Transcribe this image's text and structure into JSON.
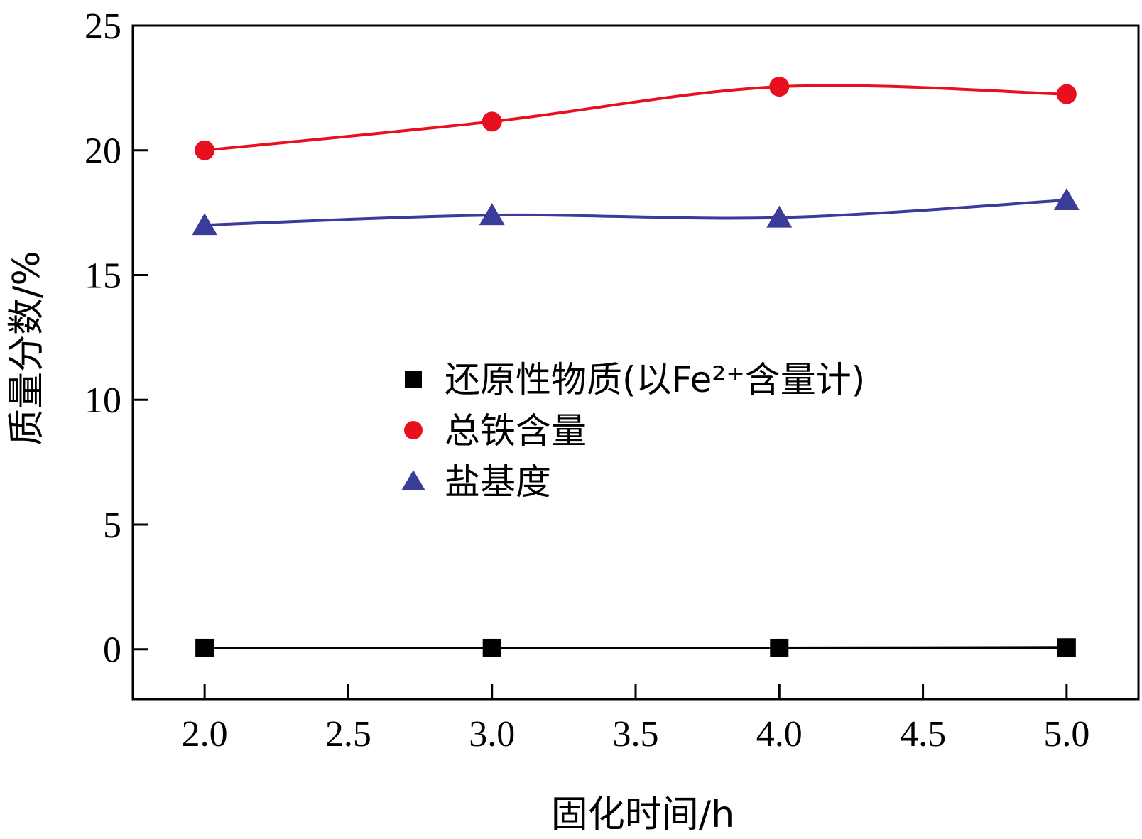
{
  "chart_data": {
    "type": "line",
    "title": "",
    "xlabel": "固化时间/h",
    "ylabel": "质量分数/%",
    "xlim": [
      1.75,
      5.25
    ],
    "ylim": [
      -2,
      25
    ],
    "x_ticks": [
      2.0,
      2.5,
      3.0,
      3.5,
      4.0,
      4.5,
      5.0
    ],
    "x_tick_labels": [
      "2.0",
      "2.5",
      "3.0",
      "3.5",
      "4.0",
      "4.5",
      "5.0"
    ],
    "y_ticks": [
      0,
      5,
      10,
      15,
      20,
      25
    ],
    "y_tick_labels": [
      "0",
      "5",
      "10",
      "15",
      "20",
      "25"
    ],
    "grid": false,
    "legend_position": "center",
    "x": [
      2.0,
      3.0,
      4.0,
      5.0
    ],
    "series": [
      {
        "name": "还原性物质(以Fe²⁺含量计)",
        "values": [
          0.05,
          0.05,
          0.05,
          0.07
        ],
        "color": "#000000",
        "marker": "square"
      },
      {
        "name": "总铁含量",
        "values": [
          20.0,
          21.15,
          22.55,
          22.25
        ],
        "color": "#e8101e",
        "marker": "circle"
      },
      {
        "name": "盐基度",
        "values": [
          17.0,
          17.4,
          17.3,
          18.0
        ],
        "color": "#3b3b9a",
        "marker": "triangle"
      }
    ]
  }
}
